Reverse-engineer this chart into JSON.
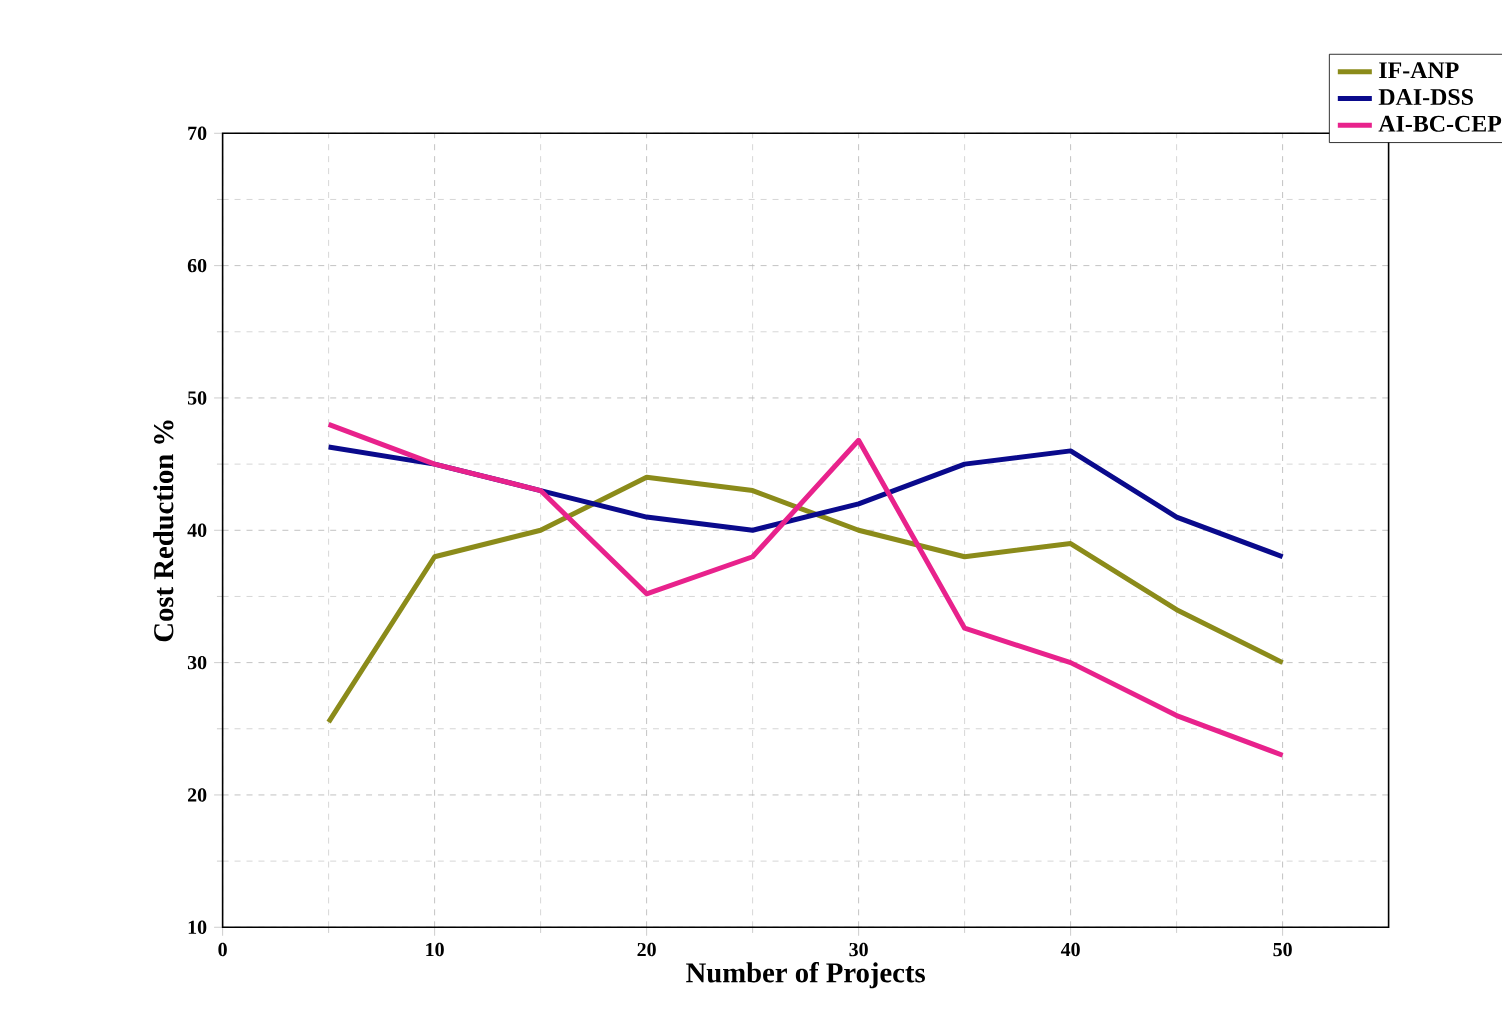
{
  "chart_data": {
    "type": "line",
    "xlabel": "Number of Projects",
    "ylabel": "Cost Reduction %",
    "x": [
      5,
      10,
      15,
      20,
      25,
      30,
      35,
      40,
      45,
      50
    ],
    "series": [
      {
        "name": "IF-ANP",
        "color": "#8b8b1a",
        "values": [
          25.5,
          38,
          40,
          44,
          43,
          40,
          38,
          39,
          34,
          30
        ]
      },
      {
        "name": "DAI-DSS",
        "color": "#0a0a8c",
        "values": [
          46.3,
          45,
          43,
          41,
          40,
          42,
          45,
          46,
          41,
          38
        ]
      },
      {
        "name": "AI-BC-CEP",
        "color": "#e8228c",
        "values": [
          48,
          45,
          43,
          35.2,
          38,
          46.8,
          32.6,
          30,
          26,
          23
        ]
      }
    ],
    "xlim": [
      0,
      55
    ],
    "ylim": [
      10,
      70
    ],
    "xticks": [
      0,
      10,
      20,
      30,
      40,
      50
    ],
    "yticks": [
      10,
      20,
      30,
      40,
      50,
      60,
      70
    ],
    "grid": true,
    "legend": "top right",
    "line_style": "solid",
    "marker": "none"
  }
}
